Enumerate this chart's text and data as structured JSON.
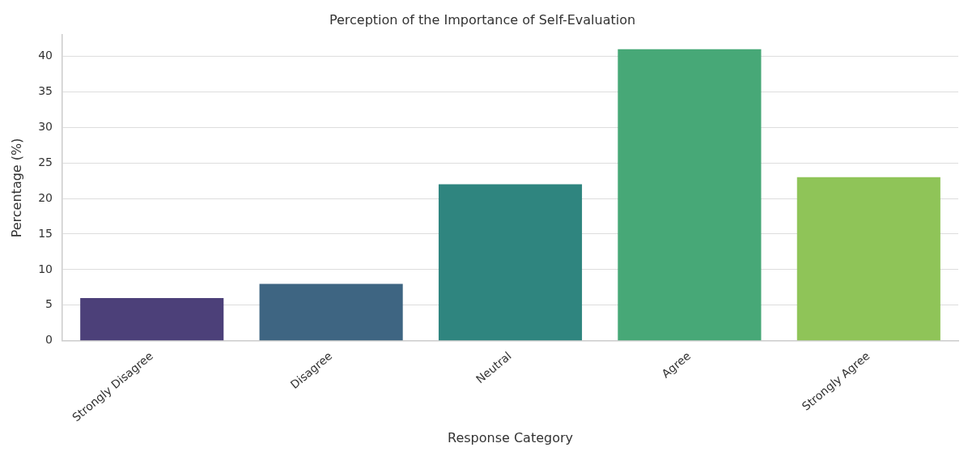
{
  "chart_data": {
    "type": "bar",
    "title": "Perception of the Importance of Self-Evaluation",
    "xlabel": "Response Category",
    "ylabel": "Percentage (%)",
    "categories": [
      "Strongly Disagree",
      "Disagree",
      "Neutral",
      "Agree",
      "Strongly Agree"
    ],
    "values": [
      6,
      8,
      22,
      41,
      23
    ],
    "colors": [
      "#4c4079",
      "#3e6582",
      "#2f857f",
      "#47a877",
      "#8fc458"
    ],
    "ylim": [
      0,
      43
    ],
    "yticks": [
      0,
      5,
      10,
      15,
      20,
      25,
      30,
      35,
      40
    ],
    "grid": "y",
    "legend": false
  }
}
